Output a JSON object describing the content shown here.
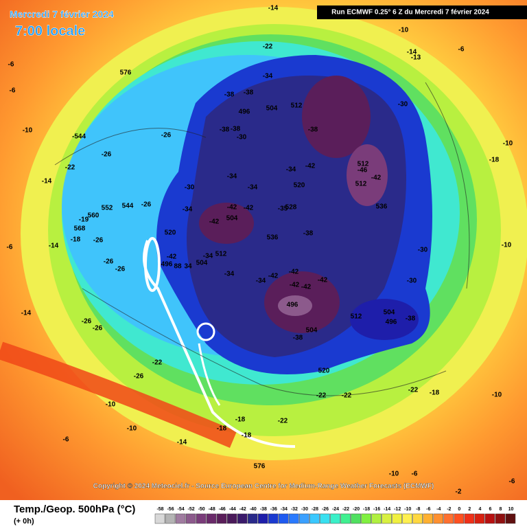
{
  "header": {
    "date": "Mercredi 7 février 2024",
    "time": "7:00 locale",
    "run": "Run ECMWF 0.25° 6 Z du Mercredi 7 février 2024"
  },
  "copyright": "Copyright © 2024 Meteociel.fr - Source European Centre for Medium-Range Weather Forecasts (ECMWF)",
  "legend": {
    "title": "Temp./Geop. 500hPa (°C)",
    "lead": "(+ 0h)",
    "values": [
      -58,
      -56,
      -54,
      -52,
      -50,
      -48,
      -46,
      -44,
      -42,
      -40,
      -38,
      -36,
      -34,
      -32,
      -30,
      -28,
      -26,
      -24,
      -22,
      -20,
      -18,
      -16,
      -14,
      -12,
      -10,
      -8,
      -6,
      -4,
      -2,
      0,
      2,
      4,
      6,
      8,
      10
    ],
    "colors": [
      "#d8d8d8",
      "#b4b4b4",
      "#a07ca0",
      "#8c5a8c",
      "#7a3c7a",
      "#6a2a6a",
      "#5a1e5a",
      "#4a1a5a",
      "#3a1a6a",
      "#2a2a8a",
      "#1e1eaa",
      "#1a3ad0",
      "#1e5af0",
      "#2a7aff",
      "#3aa0ff",
      "#3ac8ff",
      "#38e0f0",
      "#3af0c8",
      "#40f090",
      "#50e060",
      "#80f040",
      "#b0f040",
      "#d8f040",
      "#f0f040",
      "#fff050",
      "#ffd840",
      "#ffb030",
      "#ff9030",
      "#ff7030",
      "#ff5020",
      "#f03018",
      "#d82010",
      "#b81010",
      "#901010",
      "#601010"
    ]
  },
  "map_labels": [
    "-14",
    "-10",
    "-22",
    "-6",
    "-14",
    "-13",
    "576",
    "-34",
    "-38",
    "-38",
    "496",
    "504",
    "512",
    "-30",
    "-38",
    "-544",
    "-26",
    "-38",
    "-38",
    "-30",
    "-10",
    "-26",
    "-18",
    "-22",
    "-42",
    "512",
    "-46",
    "-42",
    "512",
    "-34",
    "-34",
    "-14",
    "-30",
    "-34",
    "520",
    "552",
    "544",
    "-26",
    "-34",
    "-42",
    "-42",
    "504",
    "-42",
    "528",
    "-35",
    "536",
    "560",
    "-19",
    "568",
    "-18",
    "520",
    "536",
    "-38",
    "-26",
    "-14",
    "-30",
    "-10",
    "-42",
    "-34",
    "512",
    "-26",
    "496",
    "88",
    "34",
    "504",
    "-26",
    "-42",
    "-42",
    "-34",
    "-42",
    "-42",
    "-42",
    "-34",
    "-30",
    "496",
    "512",
    "504",
    "496",
    "-38",
    "-14",
    "-26",
    "-26",
    "504",
    "-38",
    "-22",
    "520",
    "-26",
    "-22",
    "-22",
    "-22",
    "-18",
    "-10",
    "-10",
    "-18",
    "-22",
    "-18",
    "-10",
    "-18",
    "-6",
    "-14",
    "576",
    "-10",
    "-6",
    "-2",
    "-6",
    "-6",
    "-6",
    "-10",
    "-6"
  ]
}
